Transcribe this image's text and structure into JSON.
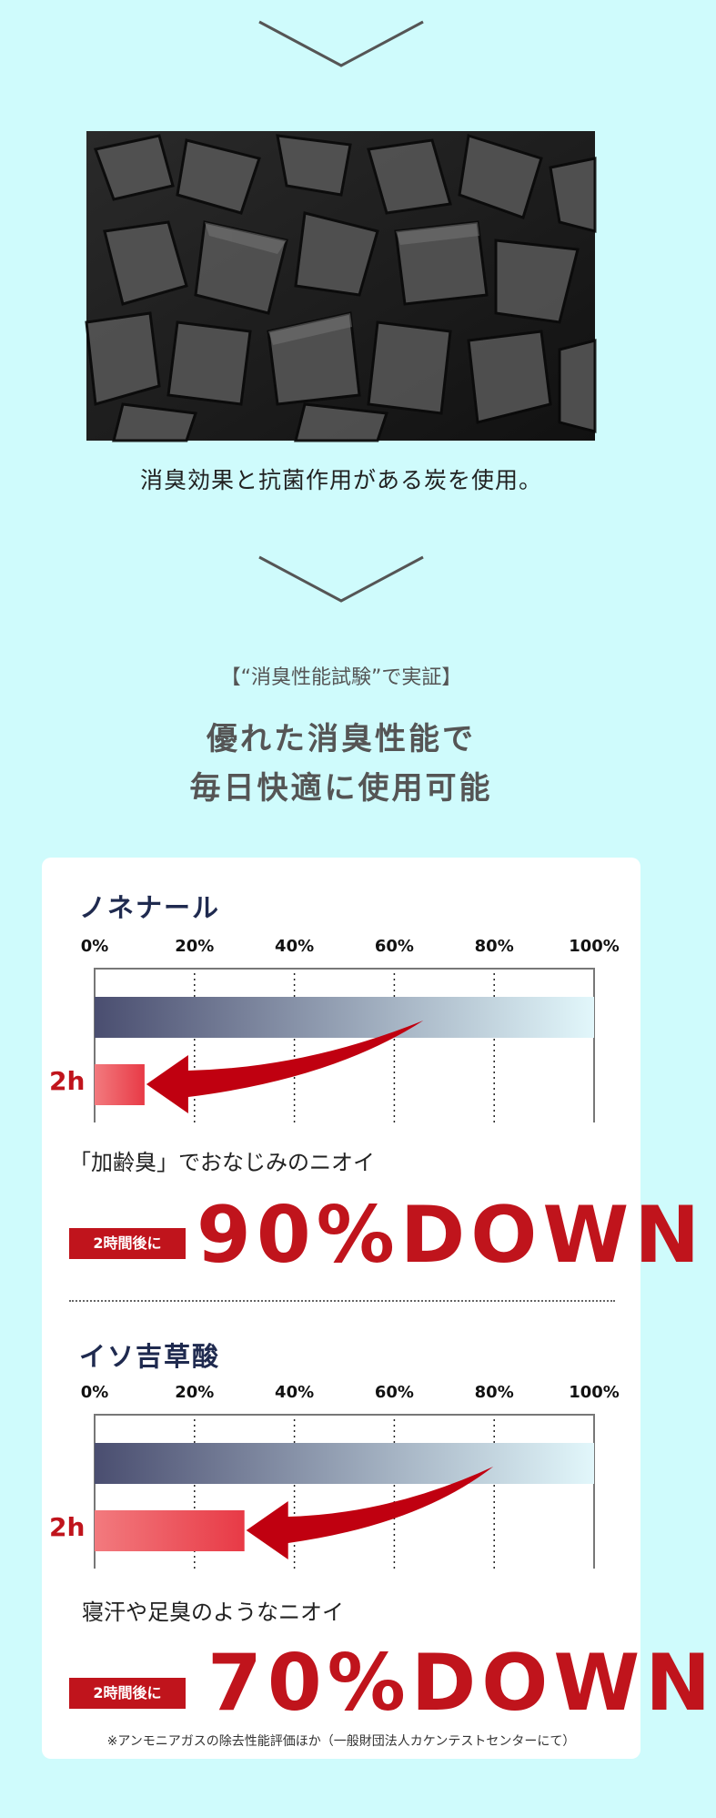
{
  "intro": {
    "caption": "消臭効果と抗菌作用がある炭を使用。",
    "image": "charcoal-photo"
  },
  "proof": {
    "subtitle": "【“消臭性能試験”で実証】",
    "heading_line1": "優れた消臭性能で",
    "heading_line2": "毎日快適に使用可能"
  },
  "chart_data": [
    {
      "type": "bar",
      "title": "ノネナール",
      "ticks": [
        "0%",
        "20%",
        "40%",
        "60%",
        "80%",
        "100%"
      ],
      "xlim": [
        0,
        100
      ],
      "categories": [
        "",
        "2h"
      ],
      "values": [
        100,
        10
      ],
      "colors": {
        "before": "#4a4e70",
        "after": "#e83a46",
        "arrow": "#c00010"
      },
      "description": "「加齢臭」でおなじみのニオイ",
      "badge": "2時間後に",
      "result": "90%DOWN"
    },
    {
      "type": "bar",
      "title": "イソ吉草酸",
      "ticks": [
        "0%",
        "20%",
        "40%",
        "60%",
        "80%",
        "100%"
      ],
      "xlim": [
        0,
        100
      ],
      "categories": [
        "",
        "2h"
      ],
      "values": [
        100,
        30
      ],
      "colors": {
        "before": "#4a4e70",
        "after": "#e83a46",
        "arrow": "#c00010"
      },
      "description": "寝汗や足臭のようなニオイ",
      "badge": "2時間後に",
      "result": "70%DOWN"
    }
  ],
  "footnote": "※アンモニアガスの除去性能評価ほか（一般財団法人カケンテストセンターにて）"
}
